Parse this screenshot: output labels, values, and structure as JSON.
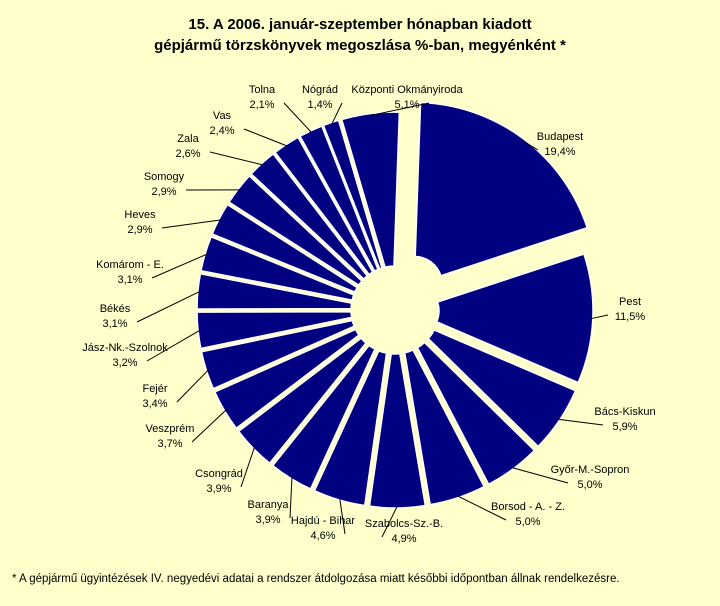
{
  "title_line1": "15. A  2006. január-szeptember hónapban kiadott",
  "title_line2": "gépjármű törzskönyvek megoszlása %-ban, megyénként *",
  "footnote": "*  A gépjármű ügyintézések IV. negyedévi adatai a rendszer átdolgozása miatt későbbi időpontban állnak rendelkezésre.",
  "colors": {
    "background": "#FFFFCC",
    "slice_fill": "#000080",
    "slice_stroke": "#FFFFFF",
    "leader_line": "#000000"
  },
  "chart_data": {
    "type": "pie",
    "slices": [
      {
        "label": "Budapest",
        "value_label": "19,4%",
        "value": 19.4
      },
      {
        "label": "Pest",
        "value_label": "11,5%",
        "value": 11.5
      },
      {
        "label": "Bács-Kiskun",
        "value_label": "5,9%",
        "value": 5.9
      },
      {
        "label": "Győr-M.-Sopron",
        "value_label": "5,0%",
        "value": 5.0
      },
      {
        "label": "Borsod - A. - Z.",
        "value_label": "5,0%",
        "value": 5.0
      },
      {
        "label": "Szabolcs-Sz.-B.",
        "value_label": "4,9%",
        "value": 4.9
      },
      {
        "label": "Hajdú - Bihar",
        "value_label": "4,6%",
        "value": 4.6
      },
      {
        "label": "Baranya",
        "value_label": "3,9%",
        "value": 3.9
      },
      {
        "label": "Csongrád",
        "value_label": "3,9%",
        "value": 3.9
      },
      {
        "label": "Veszprém",
        "value_label": "3,7%",
        "value": 3.7
      },
      {
        "label": "Fejér",
        "value_label": "3,4%",
        "value": 3.4
      },
      {
        "label": "Jász-Nk.-Szolnok",
        "value_label": "3,2%",
        "value": 3.2
      },
      {
        "label": "Békés",
        "value_label": "3,1%",
        "value": 3.1
      },
      {
        "label": "Komárom - E.",
        "value_label": "3,1%",
        "value": 3.1
      },
      {
        "label": "Heves",
        "value_label": "2,9%",
        "value": 2.9
      },
      {
        "label": "Somogy",
        "value_label": "2,9%",
        "value": 2.9
      },
      {
        "label": "Zala",
        "value_label": "2,6%",
        "value": 2.6
      },
      {
        "label": "Vas",
        "value_label": "2,4%",
        "value": 2.4
      },
      {
        "label": "Tolna",
        "value_label": "2,1%",
        "value": 2.1
      },
      {
        "label": "Nógrád",
        "value_label": "1,4%",
        "value": 1.4
      },
      {
        "label": "Központi Okmányiroda",
        "value_label": "5,1%",
        "value": 5.1
      }
    ],
    "exploded": "all slices"
  }
}
